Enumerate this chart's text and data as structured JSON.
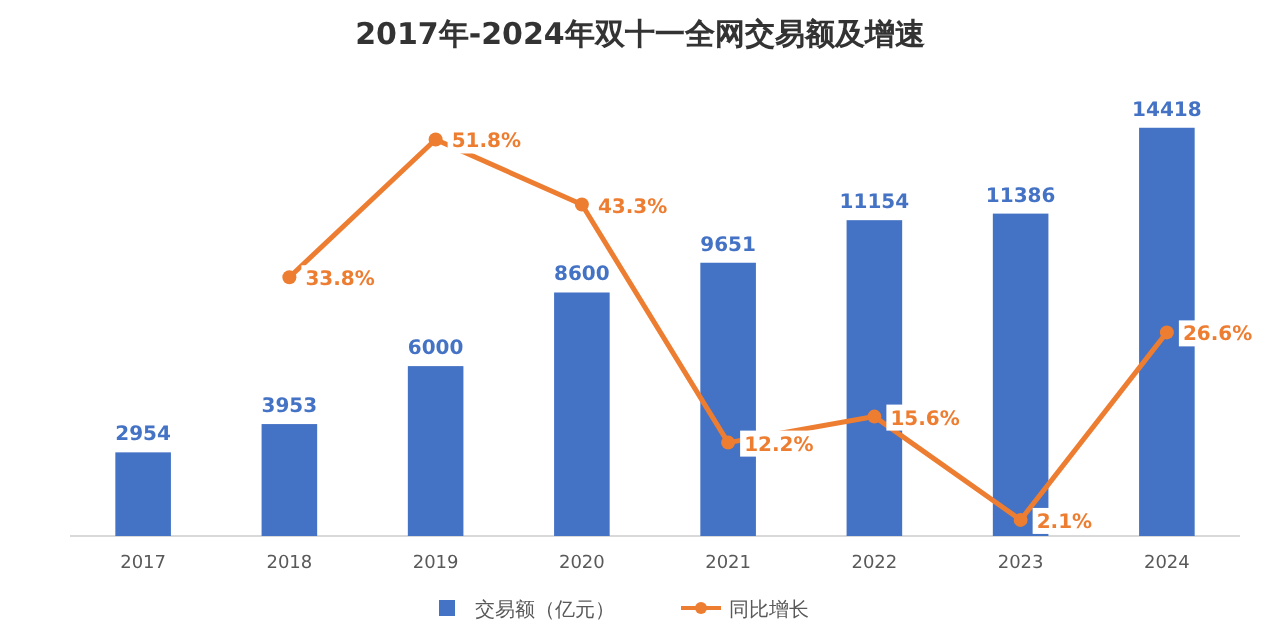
{
  "chart_data": {
    "type": "bar",
    "title": "2017年-2024年双十一全网交易额及增速",
    "categories": [
      "2017",
      "2018",
      "2019",
      "2020",
      "2021",
      "2022",
      "2023",
      "2024"
    ],
    "series": [
      {
        "name": "交易额（亿元）",
        "color": "#4472c4",
        "values": [
          2954,
          3953,
          6000,
          8600,
          9651,
          11154,
          11386,
          14418
        ]
      },
      {
        "name": "同比增长",
        "type": "line",
        "axis": "y2",
        "color": "#ed7d31",
        "marker": "circle",
        "values": [
          null,
          33.8,
          51.8,
          43.3,
          12.2,
          15.6,
          2.1,
          26.6
        ],
        "value_labels": [
          null,
          "33.8%",
          "51.8%",
          "43.3%",
          "12.2%",
          "15.6%",
          "2.1%",
          "26.6%"
        ]
      }
    ],
    "data_labels": true,
    "legend": "bottom"
  }
}
